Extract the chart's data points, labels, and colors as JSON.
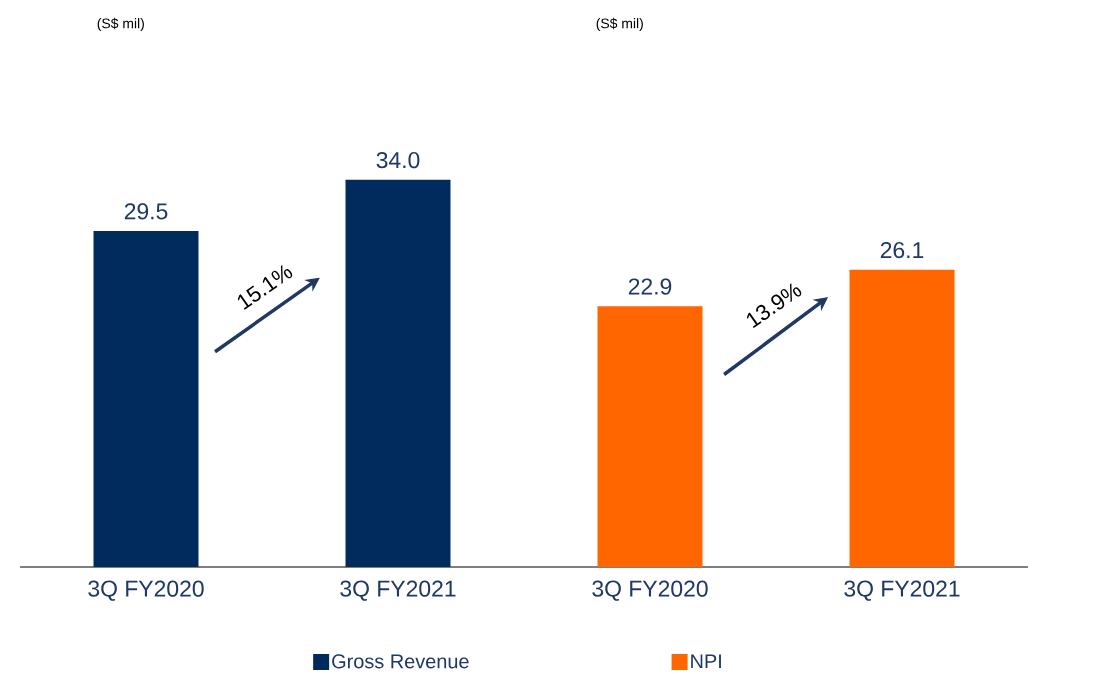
{
  "chart_data": {
    "type": "bar",
    "categories": [
      "3Q FY2020",
      "3Q FY2021",
      "3Q FY2020",
      "3Q FY2021"
    ],
    "series": [
      {
        "name": "Gross Revenue",
        "color": "#002b5c",
        "values": [
          29.5,
          34.0,
          null,
          null
        ],
        "value_labels": [
          "29.5",
          "34.0",
          null,
          null
        ]
      },
      {
        "name": "NPI",
        "color": "#ff6600",
        "values": [
          null,
          null,
          22.9,
          26.1
        ],
        "value_labels": [
          null,
          null,
          "22.9",
          "26.1"
        ]
      }
    ],
    "legend": "bottom",
    "annotations": [
      "(S$ mil)",
      "(S$ mil)",
      "15.1%",
      "13.9%"
    ]
  }
}
